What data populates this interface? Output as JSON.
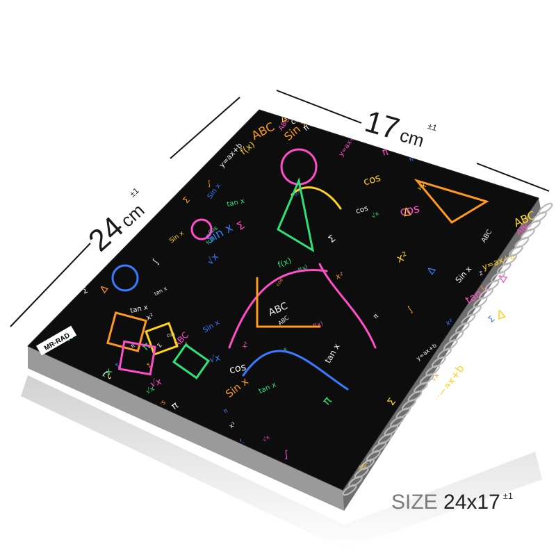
{
  "dimensions": {
    "width_value": "17",
    "width_unit": "cm",
    "width_tolerance": "±1",
    "height_value": "24",
    "height_unit": "cm",
    "height_tolerance": "±1"
  },
  "size_caption": {
    "label": "SIZE",
    "value": "24x17",
    "tolerance": "±1"
  },
  "brand": {
    "logo_text": "MR-RAD"
  },
  "cover_formulas": [
    "ABC",
    "Sin x",
    "π",
    "Σ",
    "tan x",
    "cos",
    "√x",
    "x²",
    "f(x)",
    "∫",
    "y=ax+b",
    "Δ"
  ],
  "colors": {
    "cover": "#0d0d0d",
    "coil": "#b8b8b8",
    "doodle_pink": "#ff4fc8",
    "doodle_orange": "#ff9a1f",
    "doodle_yellow": "#ffd21f",
    "doodle_blue": "#3a7bff",
    "doodle_green": "#2ee07a",
    "doodle_white": "#f2f2f2"
  }
}
